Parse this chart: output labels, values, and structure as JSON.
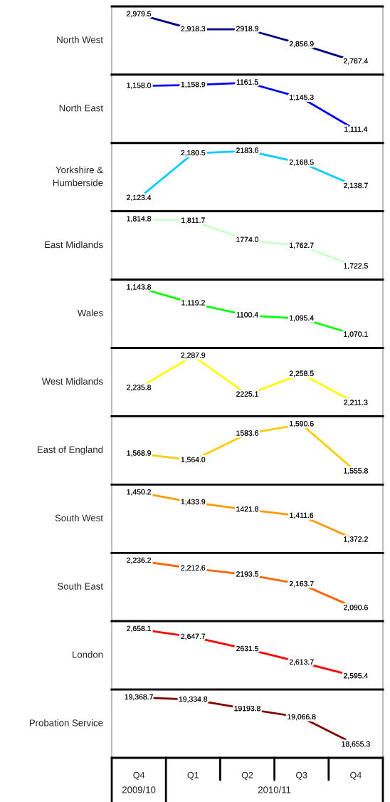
{
  "chart_data": [
    {
      "type": "line",
      "ylabel": "North West",
      "categories": [
        null,
        null,
        null,
        null,
        null
      ],
      "series": [
        {
          "color": "#000080",
          "values": [
            2979.5,
            2918.3,
            2918.9,
            2856.9,
            2787.4
          ],
          "value_labels": [
            "2,979.5",
            "2,918.3",
            "2918.9",
            "2,856.9",
            "2,787.4"
          ]
        }
      ],
      "tick_labels": false
    },
    {
      "type": "line",
      "ylabel": "North East",
      "categories": [
        null,
        null,
        null,
        null,
        null
      ],
      "series": [
        {
          "color": "#0000ff",
          "values": [
            1158.0,
            1158.9,
            1161.5,
            1145.3,
            1111.4
          ],
          "value_labels": [
            "1,158.0",
            "1,158.9",
            "1161.5",
            "1,145.3",
            "1,111.4"
          ]
        }
      ],
      "tick_labels": false
    },
    {
      "type": "line",
      "ylabel": "Yorkshire &\nHumberside",
      "categories": [
        null,
        null,
        null,
        null,
        null
      ],
      "series": [
        {
          "color": "#00ccff",
          "values": [
            2123.4,
            2180.5,
            2183.6,
            2168.5,
            2138.7
          ],
          "value_labels": [
            "2,123.4",
            "2,180.5",
            "2183.6",
            "2,168.5",
            "2,138.7"
          ]
        }
      ],
      "tick_labels": false
    },
    {
      "type": "line",
      "ylabel": "East Midlands",
      "categories": [
        null,
        null,
        null,
        null,
        null
      ],
      "series": [
        {
          "color": "#ccffcc",
          "values": [
            1814.8,
            1811.7,
            1774.0,
            1762.7,
            1722.5
          ],
          "value_labels": [
            "1,814.8",
            "1,811.7",
            "1774.0",
            "1,762.7",
            "1,722.5"
          ]
        }
      ],
      "tick_labels": false
    },
    {
      "type": "line",
      "ylabel": "Wales",
      "categories": [
        null,
        null,
        null,
        null,
        null
      ],
      "series": [
        {
          "color": "#00ff00",
          "values": [
            1143.8,
            1119.2,
            1100.4,
            1095.4,
            1070.1
          ],
          "value_labels": [
            "1,143.8",
            "1,119.2",
            "1100.4",
            "1,095.4",
            "1,070.1"
          ]
        }
      ],
      "tick_labels": false
    },
    {
      "type": "line",
      "ylabel": "West Midlands",
      "categories": [
        null,
        null,
        null,
        null,
        null
      ],
      "series": [
        {
          "color": "#ffff00",
          "values": [
            2235.8,
            2287.9,
            2225.1,
            2258.5,
            2211.3
          ],
          "value_labels": [
            "2,235.8",
            "2,287.9",
            "2225.1",
            "2,258.5",
            "2,211.3"
          ]
        }
      ],
      "tick_labels": false
    },
    {
      "type": "line",
      "ylabel": "East of England",
      "categories": [
        null,
        null,
        null,
        null,
        null
      ],
      "series": [
        {
          "color": "#ffcc00",
          "values": [
            1568.9,
            1564.0,
            1583.6,
            1590.6,
            1555.8
          ],
          "value_labels": [
            "1,568.9",
            "1,564.0",
            "1583.6",
            "1,590.6",
            "1,555.8"
          ]
        }
      ],
      "tick_labels": false
    },
    {
      "type": "line",
      "ylabel": "South West",
      "categories": [
        null,
        null,
        null,
        null,
        null
      ],
      "series": [
        {
          "color": "#ff9900",
          "values": [
            1450.2,
            1433.9,
            1421.8,
            1411.6,
            1372.2
          ],
          "value_labels": [
            "1,450.2",
            "1,433.9",
            "1421.8",
            "1,411.6",
            "1,372.2"
          ]
        }
      ],
      "tick_labels": false
    },
    {
      "type": "line",
      "ylabel": "South East",
      "categories": [
        null,
        null,
        null,
        null,
        null
      ],
      "series": [
        {
          "color": "#ff6600",
          "values": [
            2236.2,
            2212.6,
            2193.5,
            2163.7,
            2090.6
          ],
          "value_labels": [
            "2,236.2",
            "2,212.6",
            "2193.5",
            "2,163.7",
            "2,090.6"
          ]
        }
      ],
      "tick_labels": false
    },
    {
      "type": "line",
      "ylabel": "London",
      "categories": [
        null,
        null,
        null,
        null,
        null
      ],
      "series": [
        {
          "color": "#ff0000",
          "values": [
            2658.1,
            2647.7,
            2631.5,
            2613.7,
            2595.4
          ],
          "value_labels": [
            "2,658.1",
            "2,647.7",
            "2631.5",
            "2,613.7",
            "2,595.4"
          ]
        }
      ],
      "tick_labels": false
    },
    {
      "type": "line",
      "ylabel": "Probation Service",
      "categories": [
        "Q4",
        "Q1",
        "Q2",
        "Q3",
        "Q4"
      ],
      "series": [
        {
          "color": "#800000",
          "values": [
            19368.7,
            19334.8,
            19193.8,
            19066.8,
            18655.3
          ],
          "value_labels": [
            "19,368.7",
            "19,334.8",
            "19193.8",
            "19,066.8",
            "18,655.3"
          ]
        }
      ],
      "tick_labels": "x",
      "annotations": [
        "2009/10",
        "2010/11"
      ]
    }
  ]
}
